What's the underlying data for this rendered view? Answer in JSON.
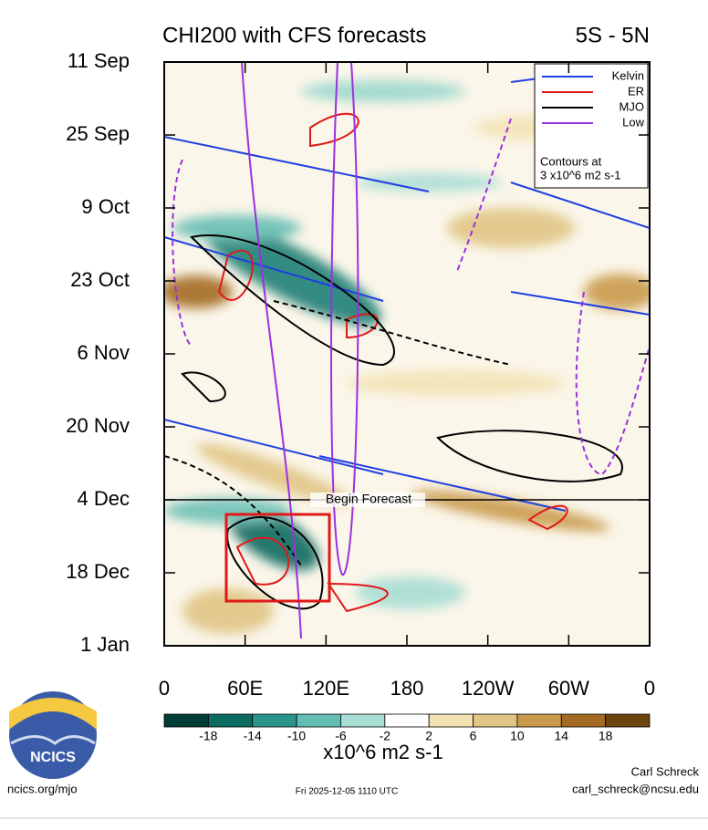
{
  "chart_data": {
    "type": "hovmoller",
    "title": "CHI200 with CFS forecasts",
    "subtitle": "5S - 5N",
    "categories": [
      "11 Sep",
      "25 Sep",
      "9 Oct",
      "23 Oct",
      "6 Nov",
      "20 Nov",
      "4 Dec",
      "18 Dec",
      "1 Jan"
    ],
    "xlim": [
      0,
      360
    ],
    "xticks": [
      0,
      {
        "value": 60,
        "label": "60E"
      },
      {
        "value": 120,
        "label": "120E"
      },
      180,
      {
        "value": 240,
        "label": "120W"
      },
      {
        "value": 300,
        "label": "60W"
      },
      {
        "value": 360,
        "label": "0"
      }
    ],
    "annotation": "Begin Forecast",
    "legend": {
      "position": "upper right",
      "series": [
        {
          "name": "Kelvin",
          "color": "#1f3fe0",
          "dash": false
        },
        {
          "name": "ER",
          "color": "#e01818",
          "dash": false
        },
        {
          "name": "MJO",
          "color": "#000000",
          "dash": false
        },
        {
          "name": "Low",
          "color": "#9b30e0",
          "dash": false
        }
      ],
      "note": [
        "Contours at",
        "3 x10^6 m2 s-1"
      ]
    },
    "colorbar": {
      "ticks": [
        -18,
        -14,
        -10,
        -6,
        -2,
        2,
        6,
        10,
        14,
        18
      ],
      "colors": [
        "#003d36",
        "#0b6b61",
        "#2a958a",
        "#63bdb2",
        "#a8ddd4",
        "#ffffff",
        "#f2e2b4",
        "#e0c584",
        "#c99a4c",
        "#a36b22",
        "#6b4410"
      ],
      "label": "x10^6 m2 s-1"
    },
    "footer": {
      "left": "ncics.org/mjo",
      "center": "Fri 2025-12-05 1110 UTC",
      "right": [
        "Carl Schreck",
        "carl_schreck@ncsu.edu"
      ],
      "logo": "NCICS"
    }
  }
}
